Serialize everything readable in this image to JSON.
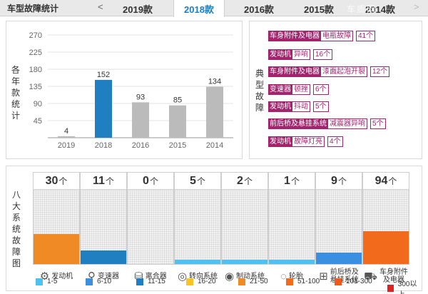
{
  "header": {
    "title": "车型故障统计",
    "prev_arrow": "<",
    "next_arrow": ">",
    "tabs": [
      "2019款",
      "2018款",
      "2016款",
      "2015款",
      "2014款"
    ],
    "active_tab": "2018款",
    "watermark": "车质网"
  },
  "bar_panel": {
    "ylabel": "各年款统计",
    "chart_data": {
      "type": "bar",
      "categories": [
        "2019",
        "2018",
        "2016",
        "2015",
        "2014"
      ],
      "values": [
        4,
        152,
        93,
        85,
        134
      ],
      "highlighted": "2018",
      "ylim": [
        0,
        270
      ],
      "yticks": [
        45,
        90,
        135,
        180,
        225,
        270
      ],
      "colors": {
        "default": "#bbbbbb",
        "highlight": "#1f7fc1"
      }
    }
  },
  "issues_panel": {
    "label": "典型故障",
    "items": [
      {
        "category": "车身附件及电器",
        "issue": "电瓶故障",
        "count": "41个"
      },
      {
        "category": "发动机",
        "issue": "异响",
        "count": "16个"
      },
      {
        "category": "车身附件及电器",
        "issue": "漆面起泡开裂",
        "count": "12个"
      },
      {
        "category": "变速器",
        "issue": "顿挫",
        "count": "6个"
      },
      {
        "category": "发动机",
        "issue": "抖动",
        "count": "5个"
      },
      {
        "category": "前后桥及悬挂系统",
        "issue": "减震器异响",
        "count": "5个"
      },
      {
        "category": "发动机",
        "issue": "故障灯亮",
        "count": "4个"
      }
    ],
    "accent": "#a3246e"
  },
  "systems_panel": {
    "label": "八大系统故障图",
    "unit": "个",
    "systems": [
      {
        "name": "发动机",
        "count": "30",
        "icon": "engine-icon",
        "glyph": "⚙",
        "level": 0.4,
        "color": "#f08a24"
      },
      {
        "name": "变速器",
        "count": "11",
        "icon": "gearshift-icon",
        "glyph": "⚲",
        "level": 0.18,
        "color": "#1f7fc1"
      },
      {
        "name": "离合器",
        "count": "0",
        "icon": "clutch-icon",
        "glyph": "⛁",
        "level": 0,
        "color": "#4dc1ef"
      },
      {
        "name": "转向系统",
        "count": "5",
        "icon": "steering-wheel-icon",
        "glyph": "◎",
        "level": 0.06,
        "color": "#4dc1ef"
      },
      {
        "name": "制动系统",
        "count": "2",
        "icon": "brake-icon",
        "glyph": "◉",
        "level": 0.06,
        "color": "#4dc1ef"
      },
      {
        "name": "轮胎",
        "count": "1",
        "icon": "tire-icon",
        "glyph": "◌",
        "level": 0.06,
        "color": "#4dc1ef"
      },
      {
        "name": "前后桥及悬挂系统",
        "name_lines": [
          "前后桥及",
          "悬挂系统"
        ],
        "count": "9",
        "icon": "suspension-icon",
        "glyph": "⊞",
        "level": 0.15,
        "color": "#3a8fe0"
      },
      {
        "name": "车身附件及电器",
        "name_lines": [
          "车身附件",
          "及电器"
        ],
        "count": "94",
        "icon": "car-body-icon",
        "glyph": "⛟",
        "level": 0.44,
        "color": "#f26b1d"
      }
    ]
  },
  "legend": [
    {
      "label": "1-5",
      "color": "#4dc1ef"
    },
    {
      "label": "6-10",
      "color": "#3a8fe0"
    },
    {
      "label": "11-15",
      "color": "#1f7fc1"
    },
    {
      "label": "16-20",
      "color": "#f7c325"
    },
    {
      "label": "21-50",
      "color": "#f08a24"
    },
    {
      "label": "51-100",
      "color": "#f26b1d"
    },
    {
      "label": "101-300",
      "color": "#ee5a1e"
    },
    {
      "label": "300以上",
      "color": "#e0231e"
    }
  ]
}
